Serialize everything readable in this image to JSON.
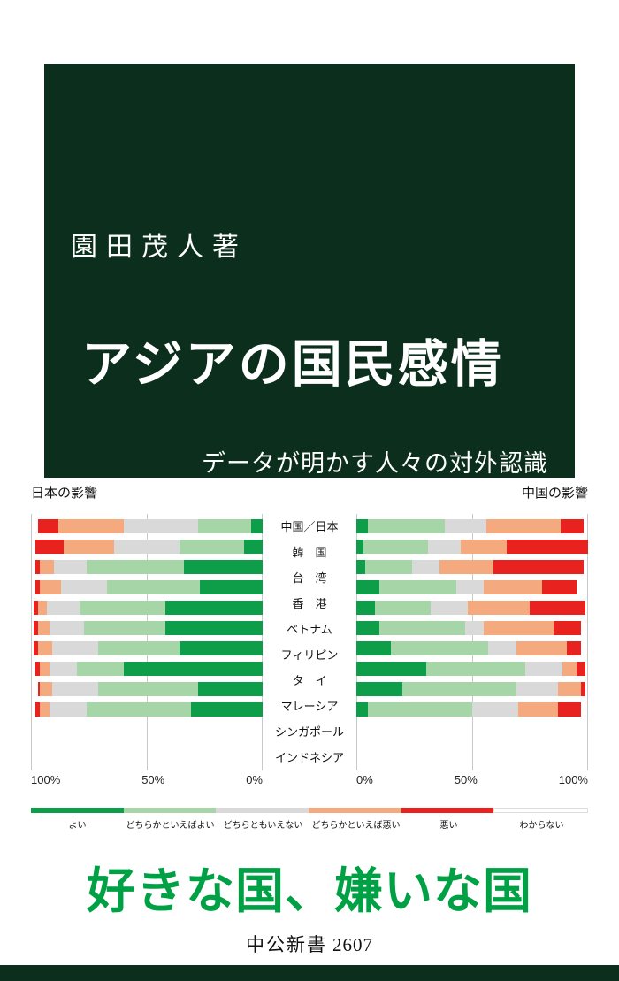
{
  "cover": {
    "author": "園田茂人著",
    "title": "アジアの国民感情",
    "subtitle": "データが明かす人々の対外認識",
    "tagline": "好きな国、嫌いな国",
    "publisher": "中公新書",
    "series_number": "2607",
    "colors": {
      "title_block_bg": "#0c2e1d",
      "title_text": "#ffffff",
      "tagline_green": "#00a145",
      "bottom_strip": "#0c2e1d"
    }
  },
  "chart_data": {
    "type": "bar",
    "variant": "paired horizontal stacked bars; left panel mirrored (bars grow right-to-left from 0%), right panel normal (bars grow left-to-right from 0%)",
    "unit": "%",
    "xlim": [
      0,
      100
    ],
    "grid": true,
    "legend_position": "bottom",
    "panel_left": {
      "header": "日本の影響",
      "ticks": [
        "100%",
        "50%",
        "0%"
      ]
    },
    "panel_right": {
      "header": "中国の影響",
      "ticks": [
        "0%",
        "50%",
        "100%"
      ]
    },
    "categories": [
      "中国／日本",
      "韓　国",
      "台　湾",
      "香　港",
      "ベトナム",
      "フィリピン",
      "タ　イ",
      "マレーシア",
      "シンガポール",
      "インドネシア"
    ],
    "series_labels": [
      "よい",
      "どちらかといえばよい",
      "どちらともいえない",
      "どちらかといえば悪い",
      "悪い",
      "わからない"
    ],
    "series_keys": [
      "good",
      "somewhat-good",
      "neutral",
      "somewhat-bad",
      "bad",
      "dont-know"
    ],
    "series_colors": [
      "#0e9d49",
      "#a6d5a8",
      "#d9d9d9",
      "#f5a97e",
      "#e8231f",
      "#ffffff"
    ],
    "japan_values": [
      [
        5,
        23,
        32,
        28,
        9,
        3
      ],
      [
        8,
        28,
        28,
        22,
        12,
        2
      ],
      [
        34,
        42,
        14,
        6,
        2,
        2
      ],
      [
        27,
        40,
        20,
        9,
        2,
        2
      ],
      [
        42,
        37,
        14,
        4,
        2,
        1
      ],
      [
        42,
        35,
        15,
        5,
        2,
        1
      ],
      [
        36,
        35,
        20,
        6,
        2,
        1
      ],
      [
        60,
        20,
        12,
        4,
        2,
        2
      ],
      [
        28,
        43,
        20,
        5,
        1,
        3
      ],
      [
        31,
        45,
        16,
        4,
        2,
        2
      ]
    ],
    "china_values": [
      [
        5,
        33,
        18,
        32,
        10,
        2
      ],
      [
        3,
        28,
        14,
        20,
        35,
        0
      ],
      [
        4,
        20,
        12,
        23,
        39,
        2
      ],
      [
        10,
        33,
        12,
        25,
        15,
        5
      ],
      [
        8,
        24,
        16,
        27,
        24,
        1
      ],
      [
        10,
        37,
        8,
        30,
        12,
        3
      ],
      [
        15,
        42,
        12,
        22,
        6,
        3
      ],
      [
        30,
        43,
        16,
        6,
        4,
        1
      ],
      [
        20,
        49,
        18,
        10,
        2,
        1
      ],
      [
        5,
        45,
        20,
        17,
        10,
        3
      ]
    ]
  }
}
